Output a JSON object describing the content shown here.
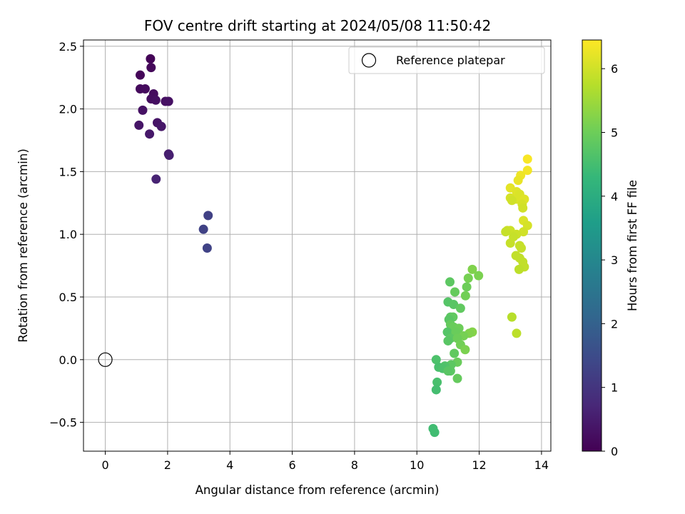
{
  "chart_data": {
    "type": "scatter",
    "title": "FOV centre drift starting at 2024/05/08 11:50:42",
    "xlabel": "Angular distance from reference (arcmin)",
    "ylabel": "Rotation from reference (arcmin)",
    "xlim": [
      -0.7,
      14.3
    ],
    "ylim": [
      -0.73,
      2.55
    ],
    "xticks": [
      0,
      2,
      4,
      6,
      8,
      10,
      12,
      14
    ],
    "xtick_labels": [
      "0",
      "2",
      "4",
      "6",
      "8",
      "10",
      "12",
      "14"
    ],
    "yticks": [
      -0.5,
      0.0,
      0.5,
      1.0,
      1.5,
      2.0,
      2.5
    ],
    "ytick_labels": [
      "−0.5",
      "0.0",
      "0.5",
      "1.0",
      "1.5",
      "2.0",
      "2.5"
    ],
    "grid": true,
    "legend": {
      "position": "top-right",
      "entries": [
        "Reference platepar"
      ]
    },
    "reference_point": {
      "x": 0,
      "y": 0
    },
    "colorbar": {
      "label": "Hours from first FF file",
      "colormap": "viridis",
      "range": [
        0,
        6.45
      ],
      "ticks": [
        0,
        1,
        2,
        3,
        4,
        5,
        6
      ],
      "tick_labels": [
        "0",
        "1",
        "2",
        "3",
        "4",
        "5",
        "6"
      ]
    },
    "points": [
      [
        1.45,
        2.4,
        0.05
      ],
      [
        1.12,
        2.27,
        0.1
      ],
      [
        1.47,
        2.33,
        0.12
      ],
      [
        1.12,
        2.16,
        0.15
      ],
      [
        1.28,
        2.16,
        0.18
      ],
      [
        1.55,
        2.12,
        0.2
      ],
      [
        1.47,
        2.08,
        0.22
      ],
      [
        1.62,
        2.07,
        0.25
      ],
      [
        1.93,
        2.06,
        0.28
      ],
      [
        2.03,
        2.06,
        0.3
      ],
      [
        1.2,
        1.99,
        0.32
      ],
      [
        1.67,
        1.89,
        0.35
      ],
      [
        1.08,
        1.87,
        0.37
      ],
      [
        1.8,
        1.86,
        0.4
      ],
      [
        1.42,
        1.8,
        0.42
      ],
      [
        2.03,
        1.64,
        0.5
      ],
      [
        2.05,
        1.63,
        0.55
      ],
      [
        1.63,
        1.44,
        0.62
      ],
      [
        3.3,
        1.15,
        1.25
      ],
      [
        3.15,
        1.04,
        1.28
      ],
      [
        3.27,
        0.89,
        1.3
      ],
      [
        11.78,
        0.72,
        5.2
      ],
      [
        11.98,
        0.67,
        5.15
      ],
      [
        11.65,
        0.65,
        5.1
      ],
      [
        11.06,
        0.62,
        4.8
      ],
      [
        11.6,
        0.58,
        5.0
      ],
      [
        11.22,
        0.54,
        4.9
      ],
      [
        11.56,
        0.51,
        5.05
      ],
      [
        11.0,
        0.46,
        4.7
      ],
      [
        11.18,
        0.44,
        4.75
      ],
      [
        11.4,
        0.41,
        4.85
      ],
      [
        11.08,
        0.34,
        4.8
      ],
      [
        11.16,
        0.34,
        4.85
      ],
      [
        11.03,
        0.32,
        4.75
      ],
      [
        11.08,
        0.28,
        4.9
      ],
      [
        11.18,
        0.26,
        4.95
      ],
      [
        11.35,
        0.25,
        5.0
      ],
      [
        10.98,
        0.22,
        4.7
      ],
      [
        11.25,
        0.22,
        4.95
      ],
      [
        11.78,
        0.22,
        5.25
      ],
      [
        11.68,
        0.21,
        5.2
      ],
      [
        11.5,
        0.19,
        5.1
      ],
      [
        11.08,
        0.17,
        4.8
      ],
      [
        11.3,
        0.17,
        5.0
      ],
      [
        11.0,
        0.15,
        4.75
      ],
      [
        11.4,
        0.12,
        5.05
      ],
      [
        11.55,
        0.08,
        5.15
      ],
      [
        11.2,
        0.05,
        4.85
      ],
      [
        11.3,
        -0.02,
        4.95
      ],
      [
        11.1,
        -0.04,
        4.8
      ],
      [
        10.62,
        0.0,
        4.6
      ],
      [
        10.9,
        -0.05,
        4.65
      ],
      [
        10.7,
        -0.06,
        4.55
      ],
      [
        10.83,
        -0.07,
        4.6
      ],
      [
        11.08,
        -0.09,
        4.8
      ],
      [
        11.0,
        -0.09,
        4.75
      ],
      [
        11.3,
        -0.15,
        4.9
      ],
      [
        10.65,
        -0.18,
        4.55
      ],
      [
        10.62,
        -0.24,
        4.5
      ],
      [
        10.52,
        -0.55,
        4.45
      ],
      [
        10.57,
        -0.58,
        4.45
      ],
      [
        13.55,
        1.6,
        6.4
      ],
      [
        13.55,
        1.51,
        6.35
      ],
      [
        13.33,
        1.47,
        6.3
      ],
      [
        13.25,
        1.43,
        6.25
      ],
      [
        13.0,
        1.37,
        6.2
      ],
      [
        13.2,
        1.34,
        6.15
      ],
      [
        13.3,
        1.32,
        6.1
      ],
      [
        13.0,
        1.29,
        6.05
      ],
      [
        13.2,
        1.28,
        6.1
      ],
      [
        13.45,
        1.28,
        6.15
      ],
      [
        13.05,
        1.27,
        6.0
      ],
      [
        13.38,
        1.24,
        6.05
      ],
      [
        13.4,
        1.21,
        6.0
      ],
      [
        13.42,
        1.11,
        6.1
      ],
      [
        13.55,
        1.07,
        6.05
      ],
      [
        12.9,
        1.03,
        5.95
      ],
      [
        13.0,
        1.03,
        5.95
      ],
      [
        12.85,
        1.02,
        5.9
      ],
      [
        13.42,
        1.02,
        6.0
      ],
      [
        13.2,
        1.0,
        5.95
      ],
      [
        13.1,
        0.98,
        5.9
      ],
      [
        13.0,
        0.93,
        5.9
      ],
      [
        13.3,
        0.91,
        5.9
      ],
      [
        13.35,
        0.89,
        5.9
      ],
      [
        13.18,
        0.83,
        5.85
      ],
      [
        13.3,
        0.81,
        5.85
      ],
      [
        13.4,
        0.78,
        5.85
      ],
      [
        13.45,
        0.74,
        5.85
      ],
      [
        13.28,
        0.72,
        5.8
      ],
      [
        13.05,
        0.34,
        5.75
      ],
      [
        13.2,
        0.21,
        5.8
      ]
    ]
  }
}
